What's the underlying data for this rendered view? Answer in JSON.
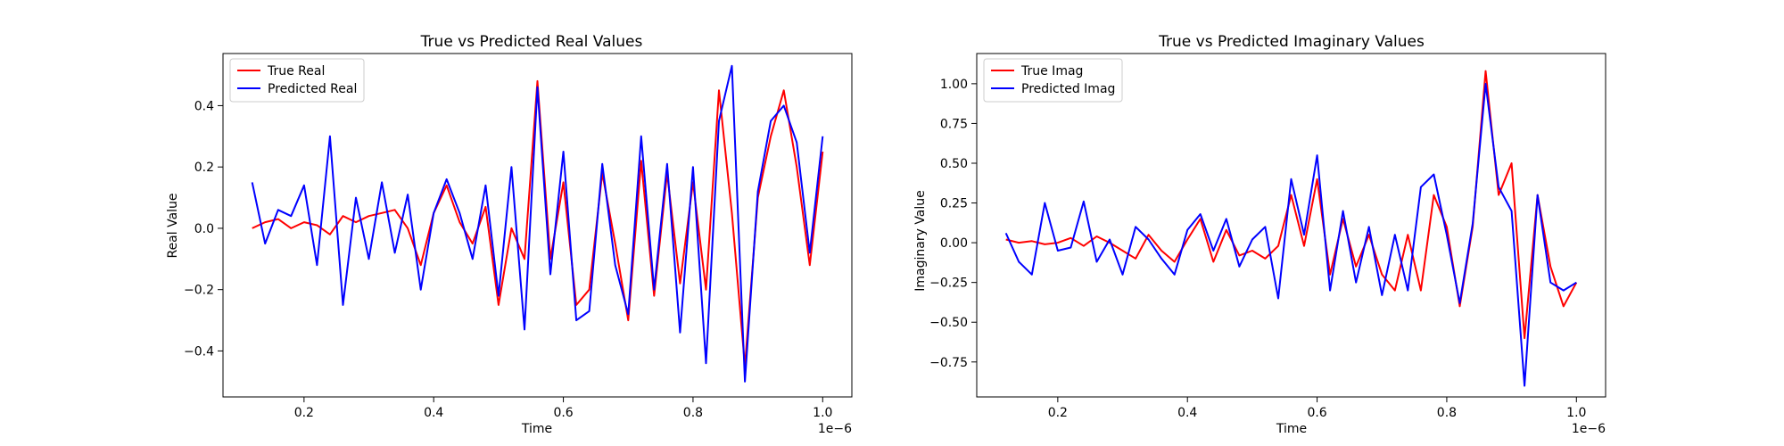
{
  "chart_data": [
    {
      "type": "line",
      "title": "True vs Predicted Real Values",
      "xlabel": "Time",
      "ylabel": "Real Value",
      "x_offset_label": "1e−6",
      "xlim": [
        0.075,
        1.045
      ],
      "ylim": [
        -0.55,
        0.57
      ],
      "xticks": [
        0.2,
        0.4,
        0.6,
        0.8,
        1.0
      ],
      "xtick_labels": [
        "0.2",
        "0.4",
        "0.6",
        "0.8",
        "1.0"
      ],
      "yticks": [
        -0.4,
        -0.2,
        0.0,
        0.2,
        0.4
      ],
      "ytick_labels": [
        "−0.4",
        "−0.2",
        "0.0",
        "0.2",
        "0.4"
      ],
      "grid": false,
      "legend_position": "top-left",
      "x": [
        0.12,
        0.14,
        0.16,
        0.18,
        0.2,
        0.22,
        0.24,
        0.26,
        0.28,
        0.3,
        0.32,
        0.34,
        0.36,
        0.38,
        0.4,
        0.42,
        0.44,
        0.46,
        0.48,
        0.5,
        0.52,
        0.54,
        0.56,
        0.58,
        0.6,
        0.62,
        0.64,
        0.66,
        0.68,
        0.7,
        0.72,
        0.74,
        0.76,
        0.78,
        0.8,
        0.82,
        0.84,
        0.86,
        0.88,
        0.9,
        0.92,
        0.94,
        0.96,
        0.98,
        1.0
      ],
      "series": [
        {
          "name": "True Real",
          "color": "#ff0000",
          "values": [
            0.0,
            0.02,
            0.03,
            0.0,
            0.02,
            0.01,
            -0.02,
            0.04,
            0.02,
            0.04,
            0.05,
            0.06,
            0.0,
            -0.12,
            0.05,
            0.14,
            0.02,
            -0.05,
            0.07,
            -0.25,
            0.0,
            -0.1,
            0.48,
            -0.1,
            0.15,
            -0.25,
            -0.2,
            0.18,
            -0.05,
            -0.3,
            0.22,
            -0.22,
            0.18,
            -0.18,
            0.15,
            -0.2,
            0.45,
            0.05,
            -0.45,
            0.1,
            0.3,
            0.45,
            0.2,
            -0.12,
            0.25
          ]
        },
        {
          "name": "Predicted Real",
          "color": "#0000ff",
          "values": [
            0.15,
            -0.05,
            0.06,
            0.04,
            0.14,
            -0.12,
            0.3,
            -0.25,
            0.1,
            -0.1,
            0.15,
            -0.08,
            0.11,
            -0.2,
            0.05,
            0.16,
            0.05,
            -0.1,
            0.14,
            -0.22,
            0.2,
            -0.33,
            0.46,
            -0.15,
            0.25,
            -0.3,
            -0.27,
            0.21,
            -0.12,
            -0.28,
            0.3,
            -0.2,
            0.21,
            -0.34,
            0.2,
            -0.44,
            0.35,
            0.53,
            -0.5,
            0.12,
            0.35,
            0.4,
            0.28,
            -0.08,
            0.3
          ]
        }
      ]
    },
    {
      "type": "line",
      "title": "True vs Predicted Imaginary Values",
      "xlabel": "Time",
      "ylabel": "Imaginary Value",
      "x_offset_label": "1e−6",
      "xlim": [
        0.075,
        1.045
      ],
      "ylim": [
        -0.97,
        1.19
      ],
      "xticks": [
        0.2,
        0.4,
        0.6,
        0.8,
        1.0
      ],
      "xtick_labels": [
        "0.2",
        "0.4",
        "0.6",
        "0.8",
        "1.0"
      ],
      "yticks": [
        -0.75,
        -0.5,
        -0.25,
        0.0,
        0.25,
        0.5,
        0.75,
        1.0
      ],
      "ytick_labels": [
        "−0.75",
        "−0.50",
        "−0.25",
        "0.00",
        "0.25",
        "0.50",
        "0.75",
        "1.00"
      ],
      "grid": false,
      "legend_position": "top-left",
      "x": [
        0.12,
        0.14,
        0.16,
        0.18,
        0.2,
        0.22,
        0.24,
        0.26,
        0.28,
        0.3,
        0.32,
        0.34,
        0.36,
        0.38,
        0.4,
        0.42,
        0.44,
        0.46,
        0.48,
        0.5,
        0.52,
        0.54,
        0.56,
        0.58,
        0.6,
        0.62,
        0.64,
        0.66,
        0.68,
        0.7,
        0.72,
        0.74,
        0.76,
        0.78,
        0.8,
        0.82,
        0.84,
        0.86,
        0.88,
        0.9,
        0.92,
        0.94,
        0.96,
        0.98,
        1.0
      ],
      "series": [
        {
          "name": "True Imag",
          "color": "#ff0000",
          "values": [
            0.02,
            0.0,
            0.01,
            -0.01,
            0.0,
            0.03,
            -0.02,
            0.04,
            0.0,
            -0.05,
            -0.1,
            0.05,
            -0.05,
            -0.12,
            0.02,
            0.15,
            -0.12,
            0.08,
            -0.08,
            -0.05,
            -0.1,
            -0.02,
            0.3,
            -0.02,
            0.4,
            -0.2,
            0.15,
            -0.15,
            0.05,
            -0.2,
            -0.3,
            0.05,
            -0.3,
            0.3,
            0.1,
            -0.4,
            0.1,
            1.08,
            0.3,
            0.5,
            -0.6,
            0.3,
            -0.15,
            -0.4,
            -0.25
          ]
        },
        {
          "name": "Predicted Imag",
          "color": "#0000ff",
          "values": [
            0.06,
            -0.12,
            -0.2,
            0.25,
            -0.05,
            -0.03,
            0.26,
            -0.12,
            0.02,
            -0.2,
            0.1,
            0.02,
            -0.1,
            -0.2,
            0.08,
            0.18,
            -0.05,
            0.15,
            -0.15,
            0.02,
            0.1,
            -0.35,
            0.4,
            0.05,
            0.55,
            -0.3,
            0.2,
            -0.25,
            0.1,
            -0.33,
            0.05,
            -0.3,
            0.35,
            0.43,
            0.05,
            -0.38,
            0.12,
            1.0,
            0.35,
            0.2,
            -0.9,
            0.3,
            -0.25,
            -0.3,
            -0.25
          ]
        }
      ]
    }
  ]
}
